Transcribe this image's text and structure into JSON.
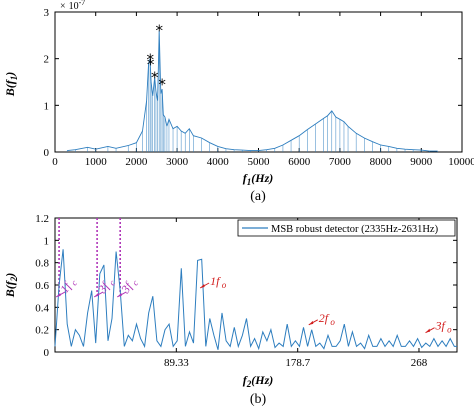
{
  "chart_data": [
    {
      "type": "line",
      "xlabel": "f1(Hz)",
      "ylabel": "B(f1)",
      "exponent_label": "× 10^-7",
      "caption": "(a)",
      "xlim": [
        0,
        10000
      ],
      "ylim": [
        0,
        3
      ],
      "x_ticks": [
        "0",
        "1000",
        "2000",
        "3000",
        "4000",
        "5000",
        "6000",
        "7000",
        "8000",
        "9000",
        "10000"
      ],
      "y_ticks": [
        "0",
        "1",
        "2",
        "3"
      ],
      "series": [
        {
          "color": "#2e7ebf",
          "x": [
            300,
            500,
            800,
            1000,
            1300,
            1500,
            1800,
            2000,
            2150,
            2250,
            2300,
            2335,
            2360,
            2400,
            2450,
            2480,
            2520,
            2560,
            2600,
            2631,
            2660,
            2700,
            2750,
            2800,
            2900,
            3000,
            3100,
            3200,
            3300,
            3400,
            3600,
            3800,
            4000,
            4200,
            4400,
            4600,
            4800,
            5000,
            5200,
            5400,
            5600,
            5800,
            6000,
            6200,
            6400,
            6600,
            6700,
            6800,
            6900,
            7000,
            7100,
            7200,
            7400,
            7600,
            7800,
            8000,
            8200,
            8400,
            8600,
            8800,
            9000,
            9200,
            9400
          ],
          "values": [
            0.03,
            0.05,
            0.1,
            0.06,
            0.12,
            0.08,
            0.14,
            0.2,
            0.45,
            1.1,
            1.9,
            2.0,
            1.5,
            1.2,
            1.6,
            1.3,
            1.1,
            2.6,
            1.25,
            1.35,
            0.8,
            0.75,
            0.55,
            0.7,
            0.5,
            0.55,
            0.45,
            0.4,
            0.5,
            0.35,
            0.3,
            0.2,
            0.12,
            0.07,
            0.05,
            0.04,
            0.03,
            0.03,
            0.05,
            0.08,
            0.15,
            0.25,
            0.35,
            0.48,
            0.6,
            0.72,
            0.78,
            0.88,
            0.75,
            0.7,
            0.65,
            0.55,
            0.4,
            0.3,
            0.22,
            0.15,
            0.12,
            0.08,
            0.06,
            0.05,
            0.04,
            0.02,
            0.02
          ]
        }
      ],
      "markers": {
        "color": "#e0201e",
        "points": [
          {
            "x": 2560,
            "y": 2.6
          },
          {
            "x": 2340,
            "y": 1.98
          },
          {
            "x": 2350,
            "y": 1.88
          },
          {
            "x": 2450,
            "y": 1.6
          },
          {
            "x": 2631,
            "y": 1.45
          }
        ]
      }
    },
    {
      "type": "line",
      "xlabel": "f2(Hz)",
      "ylabel": "B(f2)",
      "caption": "(b)",
      "xlim": [
        0,
        296
      ],
      "ylim": [
        0,
        1.2
      ],
      "x_ticks": [
        "89.33",
        "178.7",
        "268"
      ],
      "y_ticks": [
        "0",
        "0.2",
        "0.4",
        "0.6",
        "0.8",
        "1",
        "1.2"
      ],
      "legend": {
        "label": "MSB robust detector (2335Hz-2631Hz)",
        "position": "top-right"
      },
      "series": [
        {
          "name": "MSB robust detector (2335Hz-2631Hz)",
          "color": "#2e7ebf",
          "x": [
            0,
            3,
            6,
            9,
            12,
            15,
            18,
            21,
            24,
            27,
            30,
            33,
            36,
            39,
            42,
            45,
            48,
            51,
            54,
            57,
            60,
            63,
            66,
            69,
            72,
            75,
            78,
            81,
            84,
            87,
            90,
            93,
            96,
            99,
            102,
            105,
            108,
            111,
            114,
            117,
            120,
            123,
            126,
            129,
            132,
            135,
            138,
            141,
            144,
            147,
            150,
            153,
            156,
            159,
            162,
            165,
            168,
            171,
            174,
            177,
            180,
            183,
            186,
            189,
            192,
            195,
            198,
            201,
            204,
            207,
            210,
            213,
            216,
            219,
            222,
            225,
            228,
            231,
            234,
            237,
            240,
            243,
            246,
            249,
            252,
            255,
            258,
            261,
            264,
            267,
            270,
            273,
            276,
            279,
            282,
            285,
            288,
            291,
            294,
            296
          ],
          "values": [
            0.05,
            0.6,
            0.92,
            0.25,
            0.05,
            0.2,
            0.15,
            0.05,
            0.35,
            0.55,
            0.08,
            0.7,
            0.78,
            0.1,
            0.3,
            0.9,
            0.55,
            0.05,
            0.15,
            0.1,
            0.25,
            0.12,
            0.05,
            0.35,
            0.5,
            0.1,
            0.05,
            0.2,
            0.25,
            0.05,
            0.1,
            0.75,
            0.05,
            0.18,
            0.08,
            0.82,
            0.83,
            0.05,
            0.3,
            0.15,
            0.02,
            0.35,
            0.1,
            0.05,
            0.22,
            0.05,
            0.15,
            0.3,
            0.05,
            0.12,
            0.03,
            0.18,
            0.1,
            0.2,
            0.04,
            0.08,
            0.05,
            0.25,
            0.05,
            0.1,
            0.05,
            0.22,
            0.05,
            0.2,
            0.05,
            0.08,
            0.03,
            0.15,
            0.05,
            0.05,
            0.1,
            0.25,
            0.05,
            0.18,
            0.05,
            0.08,
            0.03,
            0.15,
            0.05,
            0.05,
            0.12,
            0.05,
            0.1,
            0.05,
            0.15,
            0.05,
            0.05,
            0.1,
            0.05,
            0.12,
            0.04,
            0.08,
            0.05,
            0.12,
            0.05,
            0.1,
            0.05,
            0.12,
            0.05,
            0.05
          ]
        }
      ],
      "vlines": {
        "color": "#b036b8",
        "x": [
          3,
          31,
          48
        ]
      },
      "annotations": [
        {
          "text": "1f",
          "sub": "c",
          "color": "magenta",
          "x": 6,
          "y": 0.52
        },
        {
          "text": "3f",
          "sub": "c",
          "color": "magenta",
          "x": 34,
          "y": 0.52
        },
        {
          "text": "3f",
          "sub": "c",
          "color": "magenta",
          "x": 51,
          "y": 0.52
        },
        {
          "text": "1f",
          "sub": "o",
          "color": "red",
          "x": 112,
          "y": 0.6
        },
        {
          "text": "2f",
          "sub": "o",
          "color": "red",
          "x": 192,
          "y": 0.27
        },
        {
          "text": "3f",
          "sub": "o",
          "color": "red",
          "x": 278,
          "y": 0.2
        }
      ]
    }
  ]
}
